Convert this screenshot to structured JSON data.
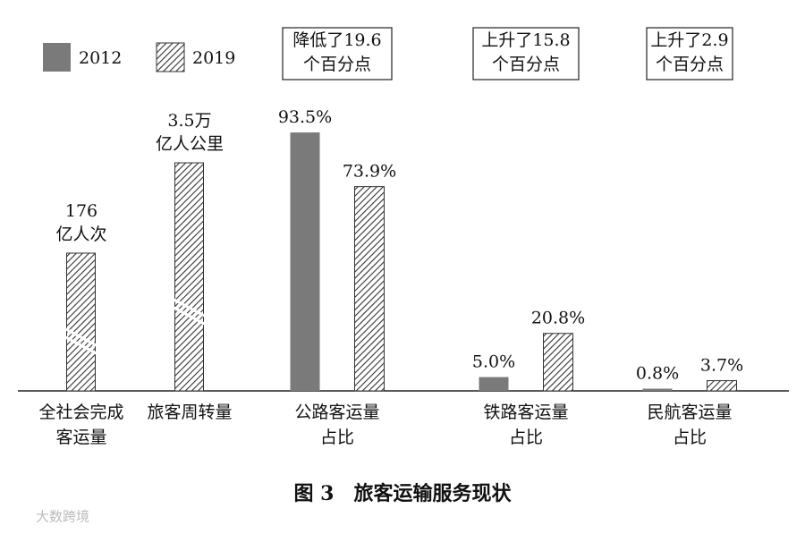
{
  "chart_data": {
    "type": "bar",
    "categories": [
      [
        "全社会完成",
        "客运量"
      ],
      [
        "旅客周转量"
      ],
      [
        "公路客运量",
        "占比"
      ],
      [
        "铁路客运量",
        "占比"
      ],
      [
        "民航客运量",
        "占比"
      ]
    ],
    "series": [
      {
        "name": "2012",
        "color": "#7a7a7a",
        "values": [
          null,
          null,
          93.5,
          5.0,
          0.8
        ],
        "value_labels": [
          null,
          null,
          "93.5%",
          "5.0%",
          "0.8%"
        ]
      },
      {
        "name": "2019",
        "color": "hatch",
        "values": [
          null,
          null,
          73.9,
          20.8,
          3.7
        ],
        "value_labels": [
          null,
          null,
          "73.9%",
          "20.8%",
          "3.7%"
        ]
      }
    ],
    "broken_bars": [
      {
        "value": 176,
        "value_label": [
          "176",
          "亿人次"
        ]
      },
      {
        "value": 35000,
        "value_label": [
          "3.5万",
          "亿人公里"
        ]
      }
    ],
    "annotations": [
      [
        "降低了19.6",
        "个百分点"
      ],
      [
        "上升了15.8",
        "个百分点"
      ],
      [
        "上升了2.9",
        "个百分点"
      ]
    ],
    "ylim": [
      0,
      100
    ],
    "caption": "图 3　旅客运输服务现状",
    "watermark": "大数跨境"
  }
}
